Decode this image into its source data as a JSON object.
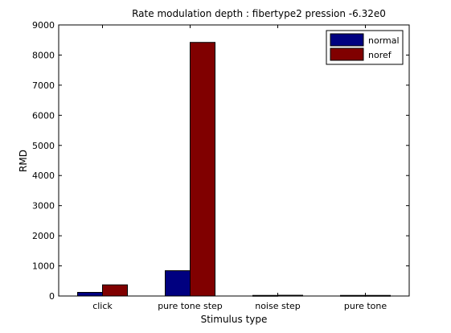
{
  "chart_data": {
    "type": "bar",
    "title": "Rate modulation depth : fibertype2 pression -6.32e0",
    "xlabel": "Stimulus type",
    "ylabel": "RMD",
    "categories": [
      "click",
      "pure tone step",
      "noise step",
      "pure tone"
    ],
    "series": [
      {
        "name": "normal",
        "color": "#000080",
        "values": [
          120,
          840,
          20,
          20
        ]
      },
      {
        "name": "noref",
        "color": "#800000",
        "values": [
          370,
          8420,
          25,
          20
        ]
      }
    ],
    "ylim": [
      0,
      9000
    ],
    "yticks": [
      0,
      1000,
      2000,
      3000,
      4000,
      5000,
      6000,
      7000,
      8000,
      9000
    ],
    "grid": false,
    "legend_position": "top-right"
  }
}
